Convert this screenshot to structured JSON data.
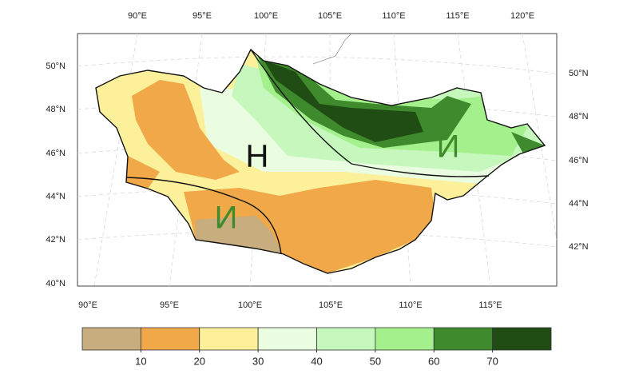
{
  "map": {
    "top_lon_labels": [
      "90°E",
      "95°E",
      "100°E",
      "105°E",
      "110°E",
      "115°E",
      "120°E"
    ],
    "bottom_lon_labels": [
      "90°E",
      "95°E",
      "100°E",
      "105°E",
      "110°E",
      "115°E"
    ],
    "left_lat_labels": [
      "50°N",
      "48°N",
      "46°N",
      "44°N",
      "42°N",
      "40°N"
    ],
    "right_lat_labels": [
      "50°N",
      "48°N",
      "46°N",
      "44°N",
      "42°N"
    ],
    "region_labels": [
      "H",
      "И",
      "И"
    ]
  },
  "colorbar": {
    "colors": [
      "#c8ad7f",
      "#f0a848",
      "#fdf09a",
      "#eafde0",
      "#c6f8be",
      "#a4f08c",
      "#3e8a2c",
      "#1f4d13"
    ],
    "ticks": [
      10,
      20,
      30,
      40,
      50,
      60,
      70
    ]
  }
}
